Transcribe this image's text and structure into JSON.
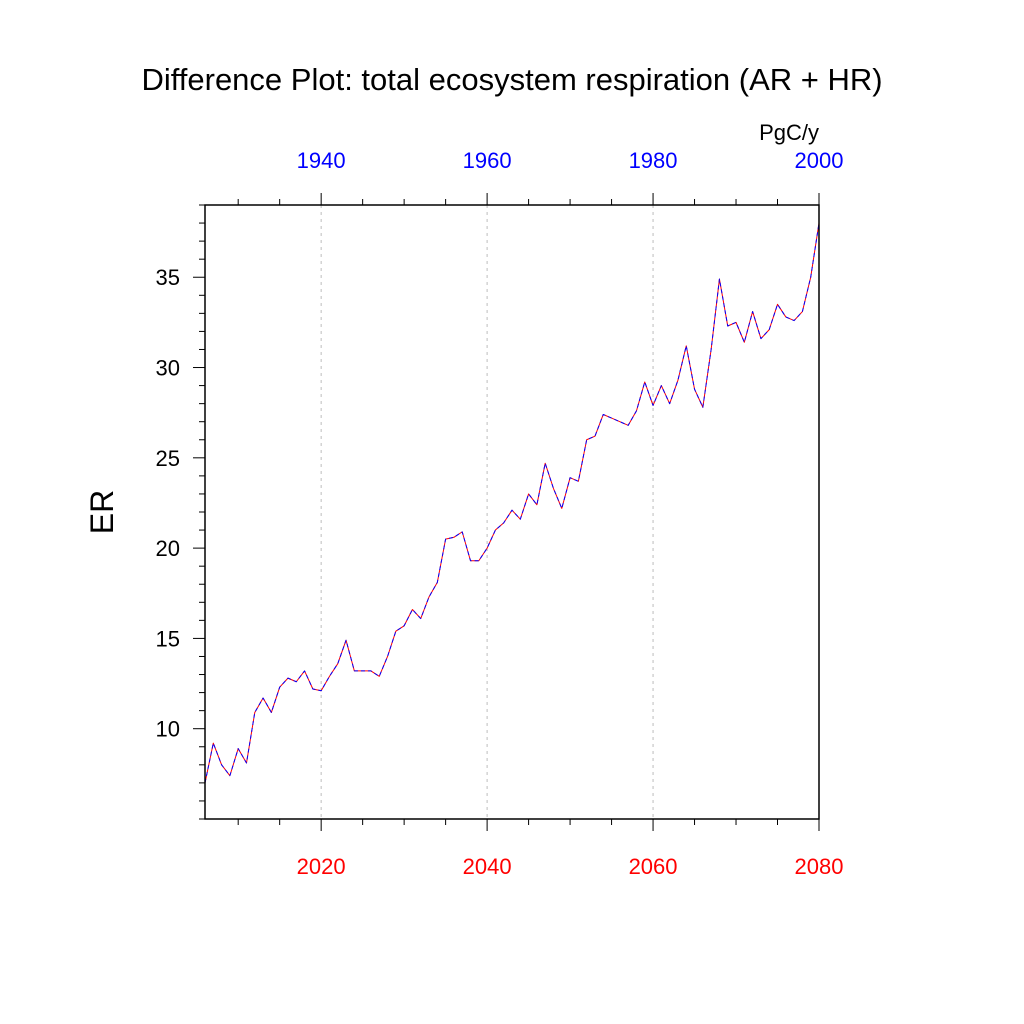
{
  "chart_data": {
    "type": "line",
    "title": "Difference Plot: total ecosystem respiration (AR + HR)",
    "units_label": "PgC/y",
    "ylabel": "ER",
    "ylim": [
      5,
      39
    ],
    "yticks": [
      10,
      15,
      20,
      25,
      30,
      35
    ],
    "ytick_labels": [
      "10",
      "15",
      "20",
      "25",
      "30",
      "35"
    ],
    "bottom_axis": {
      "range": [
        2006,
        2080
      ],
      "ticks": [
        2020,
        2040,
        2060,
        2080
      ],
      "labels": [
        "2020",
        "2040",
        "2060",
        "2080"
      ],
      "color": "#ff0000"
    },
    "top_axis": {
      "range": [
        1926,
        2000
      ],
      "ticks": [
        1940,
        1960,
        1980,
        2000
      ],
      "labels": [
        "1940",
        "1960",
        "1980",
        "2000"
      ],
      "color": "#0000ff"
    },
    "grid": "vertical dotted at bottom-axis major ticks",
    "series": [
      {
        "color": "#ff0000",
        "style": "solid",
        "x": [
          2006,
          2007,
          2008,
          2009,
          2010,
          2011,
          2012,
          2013,
          2014,
          2015,
          2016,
          2017,
          2018,
          2019,
          2020,
          2021,
          2022,
          2023,
          2024,
          2025,
          2026,
          2027,
          2028,
          2029,
          2030,
          2031,
          2032,
          2033,
          2034,
          2035,
          2036,
          2037,
          2038,
          2039,
          2040,
          2041,
          2042,
          2043,
          2044,
          2045,
          2046,
          2047,
          2048,
          2049,
          2050,
          2051,
          2052,
          2053,
          2054,
          2055,
          2056,
          2057,
          2058,
          2059,
          2060,
          2061,
          2062,
          2063,
          2064,
          2065,
          2066,
          2067,
          2068,
          2069,
          2070,
          2071,
          2072,
          2073,
          2074,
          2075,
          2076,
          2077,
          2078,
          2079,
          2080
        ],
        "y": [
          7.0,
          9.2,
          8.0,
          7.4,
          8.9,
          8.1,
          10.9,
          11.7,
          10.9,
          12.3,
          12.8,
          12.6,
          13.2,
          12.2,
          12.1,
          12.9,
          13.6,
          14.9,
          13.2,
          13.2,
          13.2,
          12.9,
          14.0,
          15.4,
          15.7,
          16.6,
          16.1,
          17.3,
          18.1,
          20.5,
          20.6,
          20.9,
          19.3,
          19.3,
          20.0,
          21.0,
          21.4,
          22.1,
          21.6,
          23.0,
          22.4,
          24.7,
          23.3,
          22.2,
          23.9,
          23.7,
          26.0,
          26.2,
          27.4,
          27.2,
          27.0,
          26.8,
          27.6,
          29.2,
          27.9,
          29.0,
          28.0,
          29.3,
          31.2,
          28.8,
          27.8,
          31.0,
          34.9,
          32.3,
          32.5,
          31.4,
          33.1,
          31.6,
          32.1,
          33.5,
          32.8,
          32.6,
          33.1,
          35.0,
          38.0
        ]
      },
      {
        "color": "#0000ff",
        "style": "dashed",
        "x": [
          2006,
          2007,
          2008,
          2009,
          2010,
          2011,
          2012,
          2013,
          2014,
          2015,
          2016,
          2017,
          2018,
          2019,
          2020,
          2021,
          2022,
          2023,
          2024,
          2025,
          2026,
          2027,
          2028,
          2029,
          2030,
          2031,
          2032,
          2033,
          2034,
          2035,
          2036,
          2037,
          2038,
          2039,
          2040,
          2041,
          2042,
          2043,
          2044,
          2045,
          2046,
          2047,
          2048,
          2049,
          2050,
          2051,
          2052,
          2053,
          2054,
          2055,
          2056,
          2057,
          2058,
          2059,
          2060,
          2061,
          2062,
          2063,
          2064,
          2065,
          2066,
          2067,
          2068,
          2069,
          2070,
          2071,
          2072,
          2073,
          2074,
          2075,
          2076,
          2077,
          2078,
          2079,
          2080
        ],
        "y": [
          7.0,
          9.2,
          8.0,
          7.4,
          8.9,
          8.1,
          10.9,
          11.7,
          10.9,
          12.3,
          12.8,
          12.6,
          13.2,
          12.2,
          12.1,
          12.9,
          13.6,
          14.9,
          13.2,
          13.2,
          13.2,
          12.9,
          14.0,
          15.4,
          15.7,
          16.6,
          16.1,
          17.3,
          18.1,
          20.5,
          20.6,
          20.9,
          19.3,
          19.3,
          20.0,
          21.0,
          21.4,
          22.1,
          21.6,
          23.0,
          22.4,
          24.7,
          23.3,
          22.2,
          23.9,
          23.7,
          26.0,
          26.2,
          27.4,
          27.2,
          27.0,
          26.8,
          27.6,
          29.2,
          27.9,
          29.0,
          28.0,
          29.3,
          31.2,
          28.8,
          27.8,
          31.0,
          34.9,
          32.3,
          32.5,
          31.4,
          33.1,
          31.6,
          32.1,
          33.5,
          32.8,
          32.6,
          33.1,
          35.0,
          38.0
        ]
      }
    ]
  }
}
